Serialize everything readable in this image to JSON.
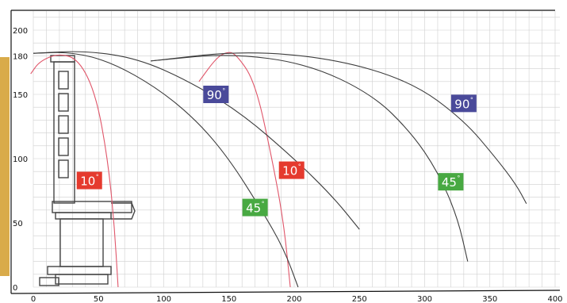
{
  "colors": {
    "red": "#e53a2e",
    "green": "#48a942",
    "blue": "#4a4a9a",
    "grid": "#cfcfcf",
    "curve_dark": "#3d3d3d",
    "curve_red": "#e0566a",
    "gold_bar": "#d9ab4a",
    "profile": "#444444"
  },
  "chart_data": {
    "type": "line",
    "xlim": [
      0,
      400
    ],
    "ylim": [
      0,
      200
    ],
    "x_ticks": [
      "0",
      "50",
      "100",
      "150",
      "200",
      "250",
      "300",
      "350",
      "400"
    ],
    "y_ticks": [
      "0",
      "50",
      "100",
      "150",
      "180",
      "200"
    ],
    "labels": [
      {
        "text": "10",
        "sup": "°",
        "color": "red",
        "x": 43,
        "y": 83
      },
      {
        "text": "10",
        "sup": "°",
        "color": "red",
        "x": 198,
        "y": 91
      },
      {
        "text": "45",
        "sup": "°",
        "color": "green",
        "x": 170,
        "y": 62
      },
      {
        "text": "45",
        "sup": "°",
        "color": "green",
        "x": 320,
        "y": 82
      },
      {
        "text": "90",
        "sup": "°",
        "color": "blue",
        "x": 140,
        "y": 150
      },
      {
        "text": "90",
        "sup": "°",
        "color": "blue",
        "x": 330,
        "y": 143
      }
    ],
    "series": [
      {
        "color": "curve_red",
        "x": [
          -2,
          5,
          20,
          35,
          48,
          57,
          62,
          65
        ],
        "y": [
          166,
          176,
          182,
          177,
          150,
          100,
          50,
          0
        ]
      },
      {
        "color": "curve_red",
        "x": [
          127,
          140,
          148,
          155,
          170,
          183,
          192,
          197
        ],
        "y": [
          160,
          178,
          183,
          182,
          160,
          100,
          50,
          0
        ]
      },
      {
        "color": "curve_dark",
        "x": [
          0,
          30,
          60,
          95,
          125,
          150,
          175,
          192,
          203
        ],
        "y": [
          182,
          183,
          175,
          155,
          130,
          100,
          60,
          30,
          0
        ]
      },
      {
        "color": "curve_dark",
        "x": [
          0,
          40,
          80,
          120,
          160,
          200,
          230,
          250
        ],
        "y": [
          182,
          184,
          178,
          160,
          135,
          100,
          70,
          45
        ]
      },
      {
        "color": "curve_dark",
        "x": [
          90,
          150,
          210,
          260,
          290,
          310,
          325,
          333
        ],
        "y": [
          176,
          182,
          174,
          150,
          120,
          90,
          55,
          20
        ]
      },
      {
        "color": "curve_dark",
        "x": [
          90,
          160,
          230,
          290,
          330,
          355,
          370,
          378
        ],
        "y": [
          176,
          184,
          178,
          160,
          130,
          100,
          80,
          65
        ]
      }
    ]
  }
}
